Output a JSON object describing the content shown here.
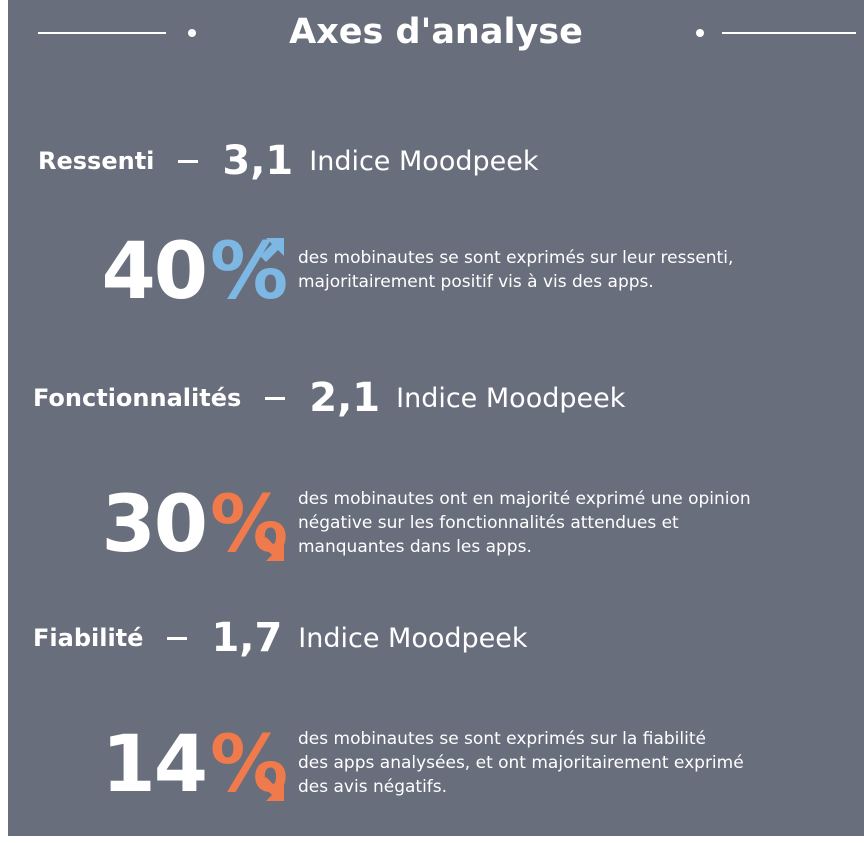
{
  "header": {
    "title": "Axes d'analyse"
  },
  "sections": [
    {
      "label": "Ressenti",
      "score": "3,1",
      "score_label": "Indice Moodpeek",
      "share": 40,
      "share_unit": "%",
      "accent": "#7db7e3",
      "trend": "up",
      "description": [
        "des mobinautes se sont exprimés sur leur ressenti,",
        "majoritairement positif vis à vis des apps."
      ]
    },
    {
      "label": "Fonctionnalités",
      "score": "2,1",
      "score_label": "Indice Moodpeek",
      "share": 30,
      "share_unit": "%",
      "accent": "#f07a4c",
      "trend": "down",
      "description": [
        "des mobinautes ont en majorité exprimé une opinion",
        "négative sur les fonctionnalités attendues et",
        "manquantes dans les apps."
      ]
    },
    {
      "label": "Fiabilité",
      "score": "1,7",
      "score_label": "Indice Moodpeek",
      "share": 14,
      "share_unit": "%",
      "accent": "#f07a4c",
      "trend": "down",
      "description": [
        "des mobinautes se sont exprimés sur la fiabilité",
        "des apps analysées, et ont majoritairement exprimé",
        "des avis négatifs."
      ]
    }
  ]
}
